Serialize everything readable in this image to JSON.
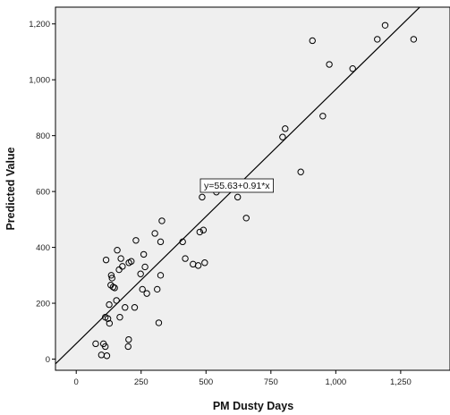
{
  "chart_data": {
    "type": "scatter",
    "title": "",
    "xlabel": "PM Dusty Days",
    "ylabel": "Predicted Value",
    "xlim": [
      -80,
      1440
    ],
    "ylim": [
      -40,
      1260
    ],
    "xticks": [
      0,
      250,
      500,
      750,
      1000,
      1250
    ],
    "xtick_labels": [
      "0",
      "250",
      "500",
      "750",
      "1,000",
      "1,250"
    ],
    "yticks": [
      0,
      200,
      400,
      600,
      800,
      1000,
      1200
    ],
    "ytick_labels": [
      "0",
      "200",
      "400",
      "600",
      "800",
      "1,000",
      "1,200"
    ],
    "grid": false,
    "background": "#efefef",
    "marker_color": "#000000",
    "fit_line": {
      "intercept": 55.63,
      "slope": 0.91,
      "label": "y=55.63+0.91*x"
    },
    "points": [
      [
        75,
        55
      ],
      [
        97,
        15
      ],
      [
        105,
        55
      ],
      [
        112,
        150
      ],
      [
        112,
        45
      ],
      [
        115,
        355
      ],
      [
        118,
        12
      ],
      [
        122,
        145
      ],
      [
        127,
        195
      ],
      [
        128,
        128
      ],
      [
        133,
        265
      ],
      [
        135,
        300
      ],
      [
        138,
        290
      ],
      [
        142,
        258
      ],
      [
        148,
        255
      ],
      [
        155,
        210
      ],
      [
        158,
        390
      ],
      [
        165,
        320
      ],
      [
        168,
        150
      ],
      [
        172,
        360
      ],
      [
        178,
        332
      ],
      [
        188,
        185
      ],
      [
        200,
        45
      ],
      [
        202,
        70
      ],
      [
        203,
        345
      ],
      [
        212,
        350
      ],
      [
        225,
        185
      ],
      [
        230,
        425
      ],
      [
        248,
        305
      ],
      [
        255,
        250
      ],
      [
        260,
        375
      ],
      [
        265,
        330
      ],
      [
        272,
        235
      ],
      [
        303,
        450
      ],
      [
        312,
        250
      ],
      [
        318,
        130
      ],
      [
        325,
        420
      ],
      [
        325,
        300
      ],
      [
        330,
        495
      ],
      [
        410,
        420
      ],
      [
        420,
        360
      ],
      [
        450,
        340
      ],
      [
        470,
        335
      ],
      [
        476,
        455
      ],
      [
        485,
        580
      ],
      [
        490,
        462
      ],
      [
        495,
        345
      ],
      [
        540,
        598
      ],
      [
        622,
        580
      ],
      [
        655,
        505
      ],
      [
        795,
        795
      ],
      [
        805,
        825
      ],
      [
        865,
        670
      ],
      [
        910,
        1140
      ],
      [
        950,
        870
      ],
      [
        975,
        1055
      ],
      [
        1065,
        1040
      ],
      [
        1160,
        1145
      ],
      [
        1190,
        1195
      ],
      [
        1300,
        1145
      ]
    ]
  }
}
